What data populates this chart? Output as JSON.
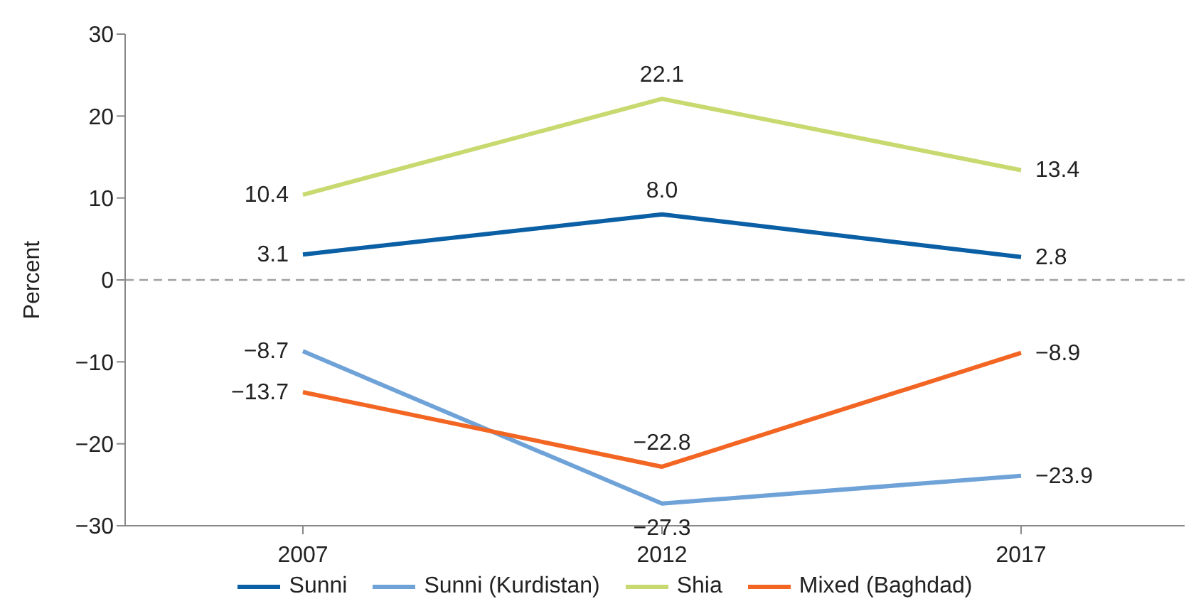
{
  "chart_data": {
    "type": "line",
    "ylabel": "Percent",
    "categories": [
      "2007",
      "2012",
      "2017"
    ],
    "series": [
      {
        "name": "Sunni",
        "color": "#0a5fa5",
        "values": [
          3.1,
          8.0,
          2.8
        ],
        "value_labels": [
          "3.1",
          "8.0",
          "2.8"
        ]
      },
      {
        "name": "Sunni (Kurdistan)",
        "color": "#6fa3d8",
        "values": [
          -8.7,
          -27.3,
          -23.9
        ],
        "value_labels": [
          "−8.7",
          "−27.3",
          "−23.9"
        ]
      },
      {
        "name": "Shia",
        "color": "#c8d96f",
        "values": [
          10.4,
          22.1,
          13.4
        ],
        "value_labels": [
          "10.4",
          "22.1",
          "13.4"
        ]
      },
      {
        "name": "Mixed (Baghdad)",
        "color": "#f26522",
        "values": [
          -13.7,
          -22.8,
          -8.9
        ],
        "value_labels": [
          "−13.7",
          "−22.8",
          "−8.9"
        ]
      }
    ],
    "ylim": [
      -30,
      30
    ],
    "yticks": [
      -30,
      -20,
      -10,
      0,
      10,
      20,
      30
    ],
    "grid": false,
    "legend": "bottom",
    "marker": "none",
    "line_style": "solid",
    "ref_lines": [
      {
        "axis": "y",
        "value": 0,
        "color": "#a0a0a0",
        "line_style": "dashed"
      }
    ]
  }
}
